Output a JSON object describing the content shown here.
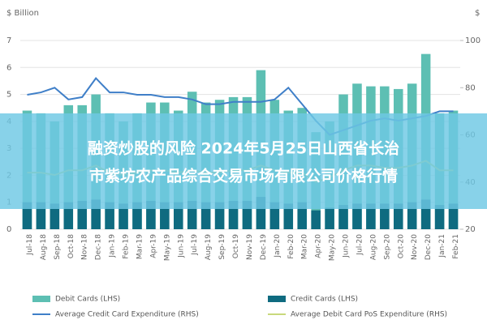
{
  "chart_data": {
    "type": "bar",
    "overlay_title": [
      "融资炒股的风险 2024年5月25日山西省长治",
      "市紫坊农产品综合交易市场有限公司价格行情"
    ],
    "y_label": "$ Billion",
    "y2_label": "$",
    "categories": [
      "Jul-18",
      "Aug-18",
      "Sep-18",
      "Oct-18",
      "Nov-18",
      "Dec-18",
      "Jan-19",
      "Feb-19",
      "Mar-19",
      "Apr-19",
      "May-19",
      "Jun-19",
      "Jul-19",
      "Aug-19",
      "Sep-19",
      "Oct-19",
      "Nov-19",
      "Dec-19",
      "Jan-20",
      "Feb-20",
      "Mar-20",
      "Apr-20",
      "May-20",
      "Jun-20",
      "Jul-20",
      "Aug-20",
      "Sep-20",
      "Oct-20",
      "Nov-20",
      "Dec-20",
      "Jan-21",
      "Feb-21"
    ],
    "series": [
      {
        "name": "Debit Cards (LHS)",
        "kind": "bar",
        "color": "#5dbfb3",
        "values": [
          4.4,
          4.3,
          4.0,
          4.6,
          4.6,
          5.0,
          4.3,
          4.0,
          4.3,
          4.7,
          4.7,
          4.4,
          5.1,
          4.7,
          4.8,
          4.9,
          4.9,
          5.9,
          4.8,
          4.4,
          4.5,
          3.6,
          4.0,
          5.0,
          5.4,
          5.3,
          5.3,
          5.2,
          5.4,
          6.5,
          4.3,
          4.4
        ]
      },
      {
        "name": "Credit Cards (LHS)",
        "kind": "bar",
        "color": "#0f6b80",
        "values": [
          1.0,
          1.0,
          0.95,
          1.0,
          1.05,
          1.1,
          1.0,
          0.95,
          1.0,
          1.05,
          1.0,
          1.0,
          1.05,
          1.0,
          1.0,
          1.05,
          1.05,
          1.2,
          1.0,
          0.95,
          1.0,
          0.7,
          0.8,
          0.9,
          0.95,
          0.95,
          0.95,
          0.95,
          1.0,
          1.1,
          0.9,
          0.95
        ]
      },
      {
        "name": "Average Credit Card Expenditure (RHS)",
        "kind": "line",
        "axis": "y2",
        "color": "#3f7fc8",
        "values": [
          77,
          78,
          80,
          75,
          76,
          84,
          78,
          78,
          77,
          77,
          76,
          76,
          75,
          73,
          73,
          74,
          74,
          74,
          75,
          80,
          73,
          66,
          60,
          62,
          64,
          66,
          67,
          66,
          67,
          68,
          70,
          70
        ]
      },
      {
        "name": "Average Debit Card PoS Expenditure (RHS)",
        "kind": "line",
        "axis": "y2",
        "color": "#c9d97c",
        "values": [
          44,
          44,
          43,
          45,
          45,
          47,
          44,
          43,
          44,
          45,
          45,
          44,
          45,
          44,
          44,
          45,
          45,
          47,
          45,
          44,
          44,
          40,
          42,
          45,
          47,
          47,
          46,
          46,
          47,
          49,
          45,
          45
        ]
      }
    ],
    "ylim": [
      0,
      7
    ],
    "yticks": [
      0,
      1,
      2,
      3,
      4,
      5,
      6,
      7
    ],
    "y2lim": [
      20,
      100
    ],
    "y2ticks": [
      20,
      40,
      60,
      80,
      100
    ]
  }
}
